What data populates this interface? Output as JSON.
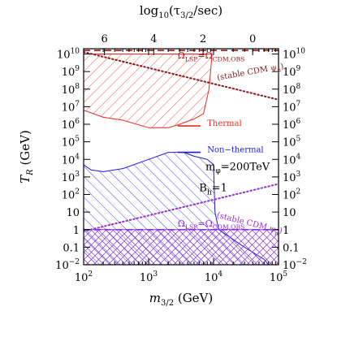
{
  "chart_data": {
    "type": "line",
    "xlabel": "m_{3/2} (GeV)",
    "ylabel": "T_R (GeV)",
    "top_xlabel": "log10(τ_{3/2}/sec)",
    "x_scale": "log",
    "y_scale": "log",
    "xlim": [
      100,
      100000
    ],
    "ylim": [
      0.01,
      20000000000
    ],
    "grid": false,
    "x_ticks": [
      {
        "value": 100,
        "label": "10",
        "sup": "2"
      },
      {
        "value": 1000,
        "label": "10",
        "sup": "3"
      },
      {
        "value": 10000,
        "label": "10",
        "sup": "4"
      },
      {
        "value": 100000,
        "label": "10",
        "sup": "5"
      }
    ],
    "y_ticks": [
      {
        "value": 0.01,
        "label": "10",
        "sup": "−2"
      },
      {
        "value": 0.1,
        "label": "0.1",
        "sup": ""
      },
      {
        "value": 1,
        "label": "1",
        "sup": ""
      },
      {
        "value": 10,
        "label": "10",
        "sup": ""
      },
      {
        "value": 100,
        "label": "10",
        "sup": "2"
      },
      {
        "value": 1000,
        "label": "10",
        "sup": "3"
      },
      {
        "value": 10000,
        "label": "10",
        "sup": "4"
      },
      {
        "value": 100000,
        "label": "10",
        "sup": "5"
      },
      {
        "value": 1000000,
        "label": "10",
        "sup": "6"
      },
      {
        "value": 10000000,
        "label": "10",
        "sup": "7"
      },
      {
        "value": 100000000,
        "label": "10",
        "sup": "8"
      },
      {
        "value": 1000000000,
        "label": "10",
        "sup": "9"
      },
      {
        "value": 10000000000,
        "label": "10",
        "sup": "10"
      }
    ],
    "top_ticks": [
      {
        "label": "6",
        "m32": 209
      },
      {
        "label": "4",
        "m32": 1200
      },
      {
        "label": "2",
        "m32": 6900
      },
      {
        "label": "0",
        "m32": 40000
      }
    ],
    "regions": [
      {
        "name": "thermal",
        "label": "Thermal",
        "color": "#e8281e",
        "hatch": "forward",
        "boundary": [
          [
            100,
            10000000000
          ],
          [
            100,
            6300000
          ],
          [
            200,
            2500000
          ],
          [
            400,
            1700000
          ],
          [
            1000,
            630000
          ],
          [
            2000,
            630000
          ],
          [
            3000,
            1000000
          ],
          [
            5000,
            2000000
          ],
          [
            7000,
            4000000
          ],
          [
            8500,
            100000000
          ],
          [
            9500,
            10000000000
          ]
        ]
      },
      {
        "name": "non-thermal",
        "label": "Non-thermal",
        "color": "#1a1adc",
        "hatch": "backward",
        "boundary": [
          [
            100,
            5000
          ],
          [
            130,
            2500
          ],
          [
            200,
            2000
          ],
          [
            400,
            3000
          ],
          [
            1000,
            10000
          ],
          [
            2000,
            25000
          ],
          [
            3500,
            25000
          ],
          [
            5000,
            15000
          ],
          [
            8000,
            10000
          ],
          [
            10000,
            5000
          ],
          [
            10500,
            10
          ],
          [
            12000,
            1
          ],
          [
            30000,
            0.1
          ],
          [
            60000,
            0.02
          ],
          [
            70000,
            0.01
          ],
          [
            100,
            0.01
          ]
        ]
      },
      {
        "name": "lsp-overproduction",
        "color": "#8a2be2",
        "hatch": "cross",
        "boundary": [
          [
            100,
            1
          ],
          [
            100000,
            1
          ],
          [
            100000,
            0.01
          ],
          [
            100,
            0.01
          ]
        ]
      }
    ],
    "lines": [
      {
        "name": "top-dashed",
        "color": "#a01515",
        "style": "dashed",
        "points": [
          [
            100,
            16000000000
          ],
          [
            100000,
            16000000000
          ]
        ]
      },
      {
        "name": "stable-cdm-psi-mu-top",
        "color": "#8b1a1a",
        "style": "dotted",
        "points": [
          [
            100,
            13000000000
          ],
          [
            100000,
            25000000
          ]
        ]
      },
      {
        "name": "stable-cdm-psi-mu-bottom",
        "color": "#9b30c8",
        "style": "dotted",
        "points": [
          [
            100,
            0.8
          ],
          [
            100000,
            400
          ]
        ]
      },
      {
        "name": "lsp-dashed",
        "color": "#8a2be2",
        "style": "dashed",
        "points": [
          [
            100,
            1
          ],
          [
            100000,
            1
          ]
        ]
      },
      {
        "name": "thermal-legend",
        "color": "#e8281e",
        "style": "solid",
        "points": [
          [
            2800,
            800000
          ],
          [
            6300,
            800000
          ]
        ]
      },
      {
        "name": "nonthermal-legend",
        "color": "#1a1adc",
        "style": "solid",
        "points": [
          [
            2800,
            25000
          ],
          [
            6300,
            25000
          ]
        ]
      }
    ],
    "annotations": [
      {
        "name": "omega-top",
        "text": "Ω_LSP=Ω_CDM,OBS",
        "color": "#a01515",
        "x": 2800,
        "y": 5500000000,
        "size": 11
      },
      {
        "name": "stable-top",
        "text": "(stable CDM ψ_μ)",
        "color": "#8b1a1a",
        "x": 11500,
        "y": 320000000,
        "size": 10,
        "angle": 10
      },
      {
        "name": "thermal",
        "text": "Thermal",
        "color": "#e8281e",
        "x": 8000,
        "y": 800000,
        "size": 10
      },
      {
        "name": "nonthermal",
        "text": "Non−thermal",
        "color": "#1a1adc",
        "x": 8000,
        "y": 25000,
        "size": 10
      },
      {
        "name": "mphi",
        "text": "m_φ=200TeV",
        "color": "#000000",
        "x": 7500,
        "y": 2500,
        "size": 13
      },
      {
        "name": "bh",
        "text": "B_h=1",
        "color": "#000000",
        "x": 6000,
        "y": 150,
        "size": 13
      },
      {
        "name": "stable-bottom",
        "text": "(stable CDM ψ_μ)",
        "color": "#9b30c8",
        "x": 11000,
        "y": 5,
        "size": 10,
        "angle": -14
      },
      {
        "name": "omega-bottom",
        "text": "Ω_LSP=Ω_CDM,OBS",
        "color": "#8a2be2",
        "x": 2800,
        "y": 1.5,
        "size": 11
      }
    ]
  }
}
